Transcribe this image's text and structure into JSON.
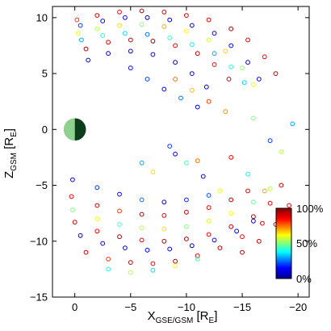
{
  "chart_data": {
    "type": "scatter",
    "title": "",
    "xlabel": {
      "main": "X",
      "sub": "GSE/GSM",
      "unit_open": " [R",
      "unit_sub": "E",
      "unit_close": "]"
    },
    "ylabel": {
      "main": "Z",
      "sub": "GSM",
      "unit_open": " [R",
      "unit_sub": "E",
      "unit_close": "]"
    },
    "xlim": [
      2,
      -21
    ],
    "ylim": [
      -15,
      11
    ],
    "x_axis_reversed": true,
    "x_ticks": [
      0,
      -5,
      -10,
      -15,
      -20
    ],
    "x_tick_labels": [
      "0",
      "−5",
      "−10",
      "−15",
      "−20"
    ],
    "y_ticks": [
      -15,
      -10,
      -5,
      0,
      5,
      10
    ],
    "y_tick_labels": [
      "−15",
      "−10",
      "−5",
      "0",
      "5",
      "10"
    ],
    "grid": false,
    "marker": "open-circle",
    "earth": {
      "x": 0,
      "y": 0,
      "radius": 1,
      "day_color": "#8fd18f",
      "night_color": "#0b3d1a"
    },
    "colorbar": {
      "label_ticks": [
        "100%",
        "50%",
        "0%"
      ],
      "tick_values": [
        100,
        50,
        0
      ],
      "range": [
        0,
        100
      ],
      "colormap": "jet",
      "colors": [
        "#00008f",
        "#0000ff",
        "#00ffff",
        "#80ff80",
        "#ffff00",
        "#ff0000",
        "#800000"
      ]
    },
    "series": [
      {
        "values": [
          {
            "x": -0.2,
            "y": 9.8,
            "c": 80
          },
          {
            "x": -2,
            "y": 10.2,
            "c": 90
          },
          {
            "x": -4,
            "y": 10.5,
            "c": 85
          },
          {
            "x": -6,
            "y": 10.6,
            "c": 95
          },
          {
            "x": -8,
            "y": 10.5,
            "c": 90
          },
          {
            "x": -10,
            "y": 10.2,
            "c": 92
          },
          {
            "x": -12,
            "y": 9.8,
            "c": 88
          },
          {
            "x": -14,
            "y": 9.0,
            "c": 95
          },
          {
            "x": -15.5,
            "y": 8.0,
            "c": 90
          },
          {
            "x": -17,
            "y": 6.5,
            "c": 85
          },
          {
            "x": -18,
            "y": 5.0,
            "c": 92
          }
        ]
      },
      {
        "values": [
          {
            "x": -0.5,
            "y": 9.3,
            "c": 20
          },
          {
            "x": -2.5,
            "y": 9.7,
            "c": 10
          },
          {
            "x": -4.5,
            "y": 10.0,
            "c": 15
          },
          {
            "x": -6.5,
            "y": 10.0,
            "c": 5
          },
          {
            "x": -8.5,
            "y": 9.8,
            "c": 12
          },
          {
            "x": -10.5,
            "y": 9.3,
            "c": 8
          },
          {
            "x": -12.5,
            "y": 8.6,
            "c": 10
          },
          {
            "x": -14,
            "y": 7.5,
            "c": 15
          },
          {
            "x": -15.5,
            "y": 6.0,
            "c": 6
          },
          {
            "x": -16.5,
            "y": 4.5,
            "c": 12
          }
        ]
      },
      {
        "values": [
          {
            "x": -0.3,
            "y": 8.6,
            "c": 60
          },
          {
            "x": -2,
            "y": 9.0,
            "c": 55
          },
          {
            "x": -4,
            "y": 9.3,
            "c": 65
          },
          {
            "x": -6,
            "y": 9.4,
            "c": 50
          },
          {
            "x": -8,
            "y": 9.2,
            "c": 70
          },
          {
            "x": -10,
            "y": 8.8,
            "c": 62
          },
          {
            "x": -12,
            "y": 8.0,
            "c": 58
          },
          {
            "x": -13.5,
            "y": 7.0,
            "c": 66
          },
          {
            "x": -15,
            "y": 5.5,
            "c": 52
          },
          {
            "x": -16,
            "y": 4.0,
            "c": 60
          }
        ]
      },
      {
        "values": [
          {
            "x": -0.6,
            "y": 8.0,
            "c": 30
          },
          {
            "x": -2.5,
            "y": 8.4,
            "c": 40
          },
          {
            "x": -4.5,
            "y": 8.6,
            "c": 35
          },
          {
            "x": -6.5,
            "y": 8.5,
            "c": 25
          },
          {
            "x": -8.5,
            "y": 8.2,
            "c": 45
          },
          {
            "x": -10.5,
            "y": 7.6,
            "c": 38
          },
          {
            "x": -12.5,
            "y": 6.8,
            "c": 30
          },
          {
            "x": -14,
            "y": 5.6,
            "c": 42
          },
          {
            "x": -15.2,
            "y": 4.2,
            "c": 34
          }
        ]
      },
      {
        "values": [
          {
            "x": -1,
            "y": 7.2,
            "c": 95
          },
          {
            "x": -3,
            "y": 7.8,
            "c": 88
          },
          {
            "x": -5,
            "y": 8.0,
            "c": 92
          },
          {
            "x": -7,
            "y": 7.9,
            "c": 97
          },
          {
            "x": -9,
            "y": 7.5,
            "c": 90
          },
          {
            "x": -11,
            "y": 6.8,
            "c": 94
          },
          {
            "x": -12.5,
            "y": 5.8,
            "c": 86
          },
          {
            "x": -13.8,
            "y": 4.5,
            "c": 92
          }
        ]
      },
      {
        "values": [
          {
            "x": -1.2,
            "y": 6.2,
            "c": 5
          },
          {
            "x": -3,
            "y": 6.8,
            "c": 10
          },
          {
            "x": -5,
            "y": 7.0,
            "c": 8
          },
          {
            "x": -7,
            "y": 6.7,
            "c": 12
          },
          {
            "x": -9,
            "y": 6.0,
            "c": 6
          },
          {
            "x": -10.5,
            "y": 5.0,
            "c": 14
          },
          {
            "x": -11.8,
            "y": 3.8,
            "c": 9
          }
        ]
      },
      {
        "values": [
          {
            "x": -5,
            "y": 5.5,
            "c": 15
          },
          {
            "x": -6.5,
            "y": 4.5,
            "c": 20
          },
          {
            "x": -8,
            "y": 3.6,
            "c": 10
          },
          {
            "x": -9.5,
            "y": 2.8,
            "c": 25
          },
          {
            "x": -11,
            "y": 2.0,
            "c": 12
          }
        ]
      },
      {
        "values": [
          {
            "x": -9,
            "y": 4.5,
            "c": 75
          },
          {
            "x": -10.5,
            "y": 3.5,
            "c": 68
          },
          {
            "x": -12,
            "y": 2.5,
            "c": 80
          },
          {
            "x": -13.5,
            "y": 1.6,
            "c": 72
          }
        ]
      },
      {
        "values": [
          {
            "x": -14,
            "y": -2.5,
            "c": 85
          },
          {
            "x": -15.5,
            "y": -4.0,
            "c": 40
          },
          {
            "x": -17,
            "y": -5.5,
            "c": 70
          },
          {
            "x": -18.5,
            "y": -2.0,
            "c": 55
          },
          {
            "x": -19.5,
            "y": 0.5,
            "c": 30
          }
        ]
      },
      {
        "values": [
          {
            "x": -8.5,
            "y": -1.5,
            "c": 20
          },
          {
            "x": -10,
            "y": -3.0,
            "c": 45
          },
          {
            "x": -11.5,
            "y": -4.2,
            "c": 10
          },
          {
            "x": -13,
            "y": -5.5,
            "c": 60
          }
        ]
      },
      {
        "values": [
          {
            "x": 0.2,
            "y": -4.5,
            "c": 10
          },
          {
            "x": -2,
            "y": -5.2,
            "c": 20
          },
          {
            "x": -4,
            "y": -5.8,
            "c": 15
          },
          {
            "x": -6,
            "y": -6.3,
            "c": 25
          },
          {
            "x": -8,
            "y": -6.5,
            "c": 12
          },
          {
            "x": -10,
            "y": -6.3,
            "c": 18
          },
          {
            "x": -12,
            "y": -5.9,
            "c": 22
          }
        ]
      },
      {
        "values": [
          {
            "x": 0.3,
            "y": -6.0,
            "c": 85
          },
          {
            "x": -2,
            "y": -6.8,
            "c": 90
          },
          {
            "x": -4,
            "y": -7.3,
            "c": 80
          },
          {
            "x": -6,
            "y": -7.6,
            "c": 95
          },
          {
            "x": -8,
            "y": -7.7,
            "c": 88
          },
          {
            "x": -10,
            "y": -7.4,
            "c": 92
          },
          {
            "x": -12,
            "y": -7.0,
            "c": 86
          },
          {
            "x": -14,
            "y": -6.3,
            "c": 94
          },
          {
            "x": -15.5,
            "y": -5.5,
            "c": 90
          }
        ]
      },
      {
        "values": [
          {
            "x": 0.2,
            "y": -7.2,
            "c": 50
          },
          {
            "x": -2,
            "y": -8.0,
            "c": 60
          },
          {
            "x": -4,
            "y": -8.5,
            "c": 45
          },
          {
            "x": -6,
            "y": -8.8,
            "c": 55
          },
          {
            "x": -8,
            "y": -8.9,
            "c": 65
          },
          {
            "x": -10,
            "y": -8.7,
            "c": 50
          },
          {
            "x": -12,
            "y": -8.2,
            "c": 58
          },
          {
            "x": -14,
            "y": -7.5,
            "c": 62
          },
          {
            "x": -16,
            "y": -6.5,
            "c": 48
          },
          {
            "x": -17.5,
            "y": -5.3,
            "c": 56
          }
        ]
      },
      {
        "values": [
          {
            "x": 0,
            "y": -8.3,
            "c": 92
          },
          {
            "x": -2,
            "y": -9.1,
            "c": 85
          },
          {
            "x": -4,
            "y": -9.6,
            "c": 95
          },
          {
            "x": -6,
            "y": -9.9,
            "c": 88
          },
          {
            "x": -8,
            "y": -10.0,
            "c": 93
          },
          {
            "x": -10,
            "y": -9.8,
            "c": 97
          },
          {
            "x": -12,
            "y": -9.4,
            "c": 86
          },
          {
            "x": -14,
            "y": -8.7,
            "c": 91
          },
          {
            "x": -16,
            "y": -7.8,
            "c": 95
          },
          {
            "x": -17.5,
            "y": -6.6,
            "c": 88
          },
          {
            "x": -18.5,
            "y": -5.0,
            "c": 92
          }
        ]
      },
      {
        "values": [
          {
            "x": -0.5,
            "y": -9.5,
            "c": 8
          },
          {
            "x": -2.5,
            "y": -10.2,
            "c": 12
          },
          {
            "x": -4.5,
            "y": -10.6,
            "c": 6
          },
          {
            "x": -6.5,
            "y": -10.8,
            "c": 14
          },
          {
            "x": -8.5,
            "y": -10.7,
            "c": 10
          },
          {
            "x": -10.5,
            "y": -10.4,
            "c": 5
          },
          {
            "x": -12.5,
            "y": -9.9,
            "c": 15
          },
          {
            "x": -14.5,
            "y": -9.1,
            "c": 9
          },
          {
            "x": -16,
            "y": -8.2,
            "c": 11
          }
        ]
      },
      {
        "values": [
          {
            "x": -1,
            "y": -11.0,
            "c": 90
          },
          {
            "x": -3,
            "y": -11.6,
            "c": 80
          },
          {
            "x": -5,
            "y": -11.9,
            "c": 92
          },
          {
            "x": -7,
            "y": -12.0,
            "c": 86
          },
          {
            "x": -9,
            "y": -11.8,
            "c": 95
          },
          {
            "x": -11,
            "y": -11.3,
            "c": 88
          },
          {
            "x": -13,
            "y": -10.6,
            "c": 93
          },
          {
            "x": -15,
            "y": -9.6,
            "c": 85
          },
          {
            "x": -16.8,
            "y": -8.4,
            "c": 90
          }
        ]
      },
      {
        "values": [
          {
            "x": -3,
            "y": -12.5,
            "c": 40
          },
          {
            "x": -5,
            "y": -12.8,
            "c": 55
          },
          {
            "x": -7,
            "y": -12.6,
            "c": 35
          },
          {
            "x": -9,
            "y": -12.2,
            "c": 60
          },
          {
            "x": -11,
            "y": -11.6,
            "c": 45
          }
        ]
      },
      {
        "values": [
          {
            "x": -15,
            "y": -11.0,
            "c": 95
          },
          {
            "x": -16.5,
            "y": -10.0,
            "c": 90
          },
          {
            "x": -18,
            "y": -8.5,
            "c": 93
          },
          {
            "x": -19.2,
            "y": -6.8,
            "c": 88
          }
        ]
      },
      {
        "values": [
          {
            "x": -6,
            "y": -3.0,
            "c": 30
          },
          {
            "x": -7,
            "y": -3.8,
            "c": 65
          },
          {
            "x": -9,
            "y": -2.2,
            "c": 15
          },
          {
            "x": -11,
            "y": -2.8,
            "c": 75
          },
          {
            "x": -16,
            "y": 1.0,
            "c": 50
          },
          {
            "x": -17.5,
            "y": -1.0,
            "c": 20
          }
        ]
      }
    ]
  }
}
